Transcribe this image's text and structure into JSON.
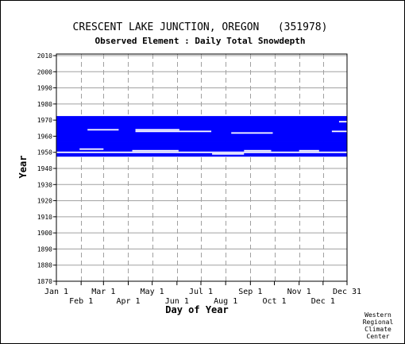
{
  "chart_data": {
    "type": "heatmap",
    "title": "CRESCENT LAKE JUNCTION, OREGON   (351978)",
    "subtitle": "Observed Element : Daily Total Snowdepth",
    "xlabel": "Day of Year",
    "ylabel": "Year",
    "ylim": [
      1870,
      2011
    ],
    "xlim": [
      1,
      365
    ],
    "y_ticks": [
      1870,
      1880,
      1890,
      1900,
      1910,
      1920,
      1930,
      1940,
      1950,
      1960,
      1970,
      1980,
      1990,
      2000,
      2010
    ],
    "x_ticks_top": [
      {
        "label": "Jan 1",
        "day": 1
      },
      {
        "label": "Mar 1",
        "day": 60
      },
      {
        "label": "May 1",
        "day": 121
      },
      {
        "label": "Jul 1",
        "day": 182
      },
      {
        "label": "Sep 1",
        "day": 244
      },
      {
        "label": "Nov 1",
        "day": 305
      },
      {
        "label": "Dec 31",
        "day": 365
      }
    ],
    "x_ticks_bottom": [
      {
        "label": "Feb 1",
        "day": 32
      },
      {
        "label": "Apr 1",
        "day": 91
      },
      {
        "label": "Jun 1",
        "day": 152
      },
      {
        "label": "Aug 1",
        "day": 213
      },
      {
        "label": "Oct 1",
        "day": 274
      },
      {
        "label": "Dec 1",
        "day": 335
      }
    ],
    "grid": true,
    "data_color": "#0000ff",
    "series": [
      {
        "values": [
          {
            "year": 1948,
            "start": 1,
            "end": 365
          },
          {
            "year": 1949,
            "start": 1,
            "end": 365
          },
          {
            "year": 1950,
            "start": 1,
            "end": 365
          },
          {
            "year": 1951,
            "start": 1,
            "end": 365
          },
          {
            "year": 1952,
            "start": 1,
            "end": 365
          },
          {
            "year": 1953,
            "start": 1,
            "end": 365
          },
          {
            "year": 1954,
            "start": 1,
            "end": 365
          },
          {
            "year": 1955,
            "start": 1,
            "end": 365
          },
          {
            "year": 1956,
            "start": 1,
            "end": 365
          },
          {
            "year": 1957,
            "start": 1,
            "end": 365
          },
          {
            "year": 1958,
            "start": 1,
            "end": 365
          },
          {
            "year": 1959,
            "start": 1,
            "end": 365
          },
          {
            "year": 1960,
            "start": 1,
            "end": 365
          },
          {
            "year": 1961,
            "start": 1,
            "end": 365
          },
          {
            "year": 1962,
            "start": 1,
            "end": 365
          },
          {
            "year": 1963,
            "start": 1,
            "end": 365
          },
          {
            "year": 1964,
            "start": 1,
            "end": 365
          },
          {
            "year": 1965,
            "start": 1,
            "end": 365
          },
          {
            "year": 1966,
            "start": 1,
            "end": 365
          },
          {
            "year": 1967,
            "start": 1,
            "end": 365
          },
          {
            "year": 1968,
            "start": 1,
            "end": 365
          },
          {
            "year": 1969,
            "start": 1,
            "end": 365
          },
          {
            "year": 1970,
            "start": 1,
            "end": 365
          },
          {
            "year": 1971,
            "start": 1,
            "end": 365
          },
          {
            "year": 1972,
            "start": 1,
            "end": 365
          }
        ]
      },
      {
        "name": "gaps",
        "values": [
          {
            "year": 1950,
            "start": 1,
            "end": 365
          },
          {
            "year": 1952,
            "start": 30,
            "end": 60
          },
          {
            "year": 1951,
            "start": 96,
            "end": 154
          },
          {
            "year": 1949,
            "start": 196,
            "end": 236
          },
          {
            "year": 1951,
            "start": 236,
            "end": 270
          },
          {
            "year": 1951,
            "start": 305,
            "end": 330
          },
          {
            "year": 1962,
            "start": 220,
            "end": 272
          },
          {
            "year": 1964,
            "start": 40,
            "end": 79
          },
          {
            "year": 1964,
            "start": 100,
            "end": 155
          },
          {
            "year": 1963,
            "start": 100,
            "end": 195
          },
          {
            "year": 1963,
            "start": 346,
            "end": 365
          },
          {
            "year": 1969,
            "start": 355,
            "end": 365
          }
        ]
      }
    ]
  },
  "footer": {
    "credit_lines": [
      "Western",
      "Regional",
      "Climate",
      "Center"
    ]
  }
}
